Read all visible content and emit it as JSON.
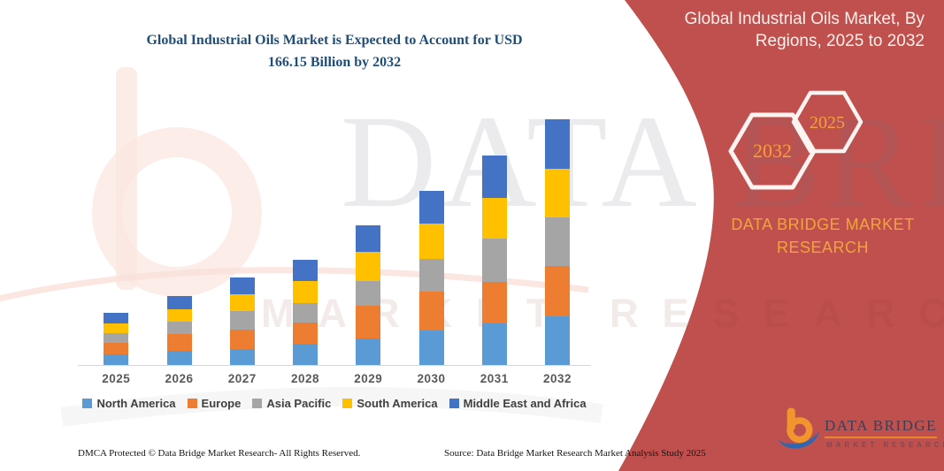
{
  "page": {
    "background_color": "#FFFFFF"
  },
  "header": {
    "title_line1": "Global Industrial Oils Market is Expected to Account for USD",
    "title_line2": "166.15 Billion by 2032",
    "title_color": "#1F4E79"
  },
  "sidebar": {
    "background_color": "#C0504D",
    "heading_line1": "Global Industrial Oils Market, By",
    "heading_line2": "Regions, 2025 to 2032",
    "badges": [
      {
        "label": "2032"
      },
      {
        "label": "2025"
      }
    ],
    "brand_text": "DATA BRIDGE MARKET RESEARCH",
    "accent_color": "#F2A13C"
  },
  "logo": {
    "name": "DATA BRIDGE",
    "subtext": "MARKET RESEARCH",
    "orange": "#F2952F",
    "blue": "#2C67B1"
  },
  "watermark": {
    "text_primary": "DATA BRIDGE",
    "text_secondary": "MARKET RESEARCH"
  },
  "footer": {
    "dmca": "DMCA Protected © Data Bridge Market Research-  All Rights Reserved.",
    "source": "Source: Data Bridge Market Research  Market Analysis Study 2025"
  },
  "chart_data": {
    "type": "bar",
    "stacked": true,
    "title": "Global Industrial Oils Market is Expected to Account for USD 166.15 Billion by 2032",
    "unit": "USD Billion",
    "categories": [
      "2025",
      "2026",
      "2027",
      "2028",
      "2029",
      "2030",
      "2031",
      "2032"
    ],
    "series": [
      {
        "name": "North America",
        "color": "#5B9BD5",
        "values": [
          7.0,
          9.4,
          10.9,
          14.3,
          17.9,
          23.3,
          28.3,
          32.85
        ]
      },
      {
        "name": "Europe",
        "color": "#ED7D31",
        "values": [
          7.9,
          11.3,
          13.3,
          14.5,
          21.9,
          26.5,
          28.1,
          34.2
        ]
      },
      {
        "name": "Asia Pacific",
        "color": "#A5A5A5",
        "values": [
          6.6,
          8.7,
          12.5,
          13.3,
          16.9,
          21.9,
          28.9,
          32.8
        ]
      },
      {
        "name": "South America",
        "color": "#FFC000",
        "values": [
          6.4,
          8.5,
          10.9,
          14.5,
          19.9,
          23.9,
          27.7,
          32.8
        ]
      },
      {
        "name": "Middle East and Africa",
        "color": "#4472C4",
        "values": [
          7.3,
          8.7,
          11.5,
          14.5,
          17.9,
          22.3,
          28.9,
          33.5
        ]
      }
    ],
    "totals": [
      35.2,
      46.6,
      59.1,
      71.1,
      94.5,
      117.9,
      141.9,
      166.15
    ],
    "xlabel": "",
    "ylabel": "",
    "ylim": [
      0,
      170
    ],
    "y_axis_visible": false,
    "grid": false,
    "legend_position": "bottom"
  }
}
